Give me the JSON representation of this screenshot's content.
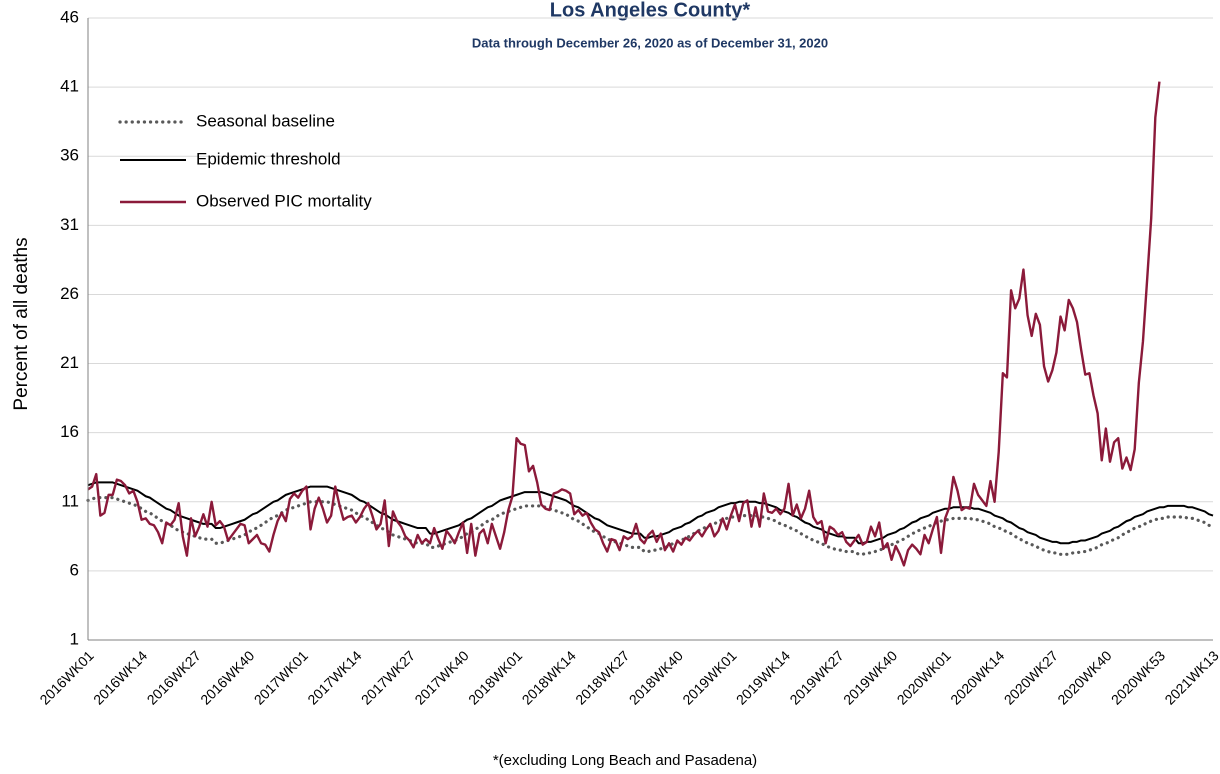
{
  "chart_data": {
    "type": "line",
    "title": "Los Angeles County*",
    "subtitle": "Data through December 26, 2020 as of December 31, 2020",
    "y_label": "Percent of all deaths",
    "footnote": "*(excluding Long Beach and Pasadena)",
    "ylim": [
      1,
      46
    ],
    "yticks": [
      1,
      6,
      11,
      16,
      21,
      26,
      31,
      36,
      41,
      46
    ],
    "grid": true,
    "legend": "upper-left",
    "categories": [
      "2016WK01",
      null,
      null,
      null,
      null,
      null,
      null,
      null,
      null,
      null,
      null,
      null,
      null,
      "2016WK14",
      null,
      null,
      null,
      null,
      null,
      null,
      null,
      null,
      null,
      null,
      null,
      null,
      "2016WK27",
      null,
      null,
      null,
      null,
      null,
      null,
      null,
      null,
      null,
      null,
      null,
      null,
      "2016WK40",
      null,
      null,
      null,
      null,
      null,
      null,
      null,
      null,
      null,
      null,
      null,
      null,
      "2017WK01",
      null,
      null,
      null,
      null,
      null,
      null,
      null,
      null,
      null,
      null,
      null,
      null,
      "2017WK14",
      null,
      null,
      null,
      null,
      null,
      null,
      null,
      null,
      null,
      null,
      null,
      null,
      "2017WK27",
      null,
      null,
      null,
      null,
      null,
      null,
      null,
      null,
      null,
      null,
      null,
      null,
      "2017WK40",
      null,
      null,
      null,
      null,
      null,
      null,
      null,
      null,
      null,
      null,
      null,
      null,
      "2018WK01",
      null,
      null,
      null,
      null,
      null,
      null,
      null,
      null,
      null,
      null,
      null,
      null,
      "2018WK14",
      null,
      null,
      null,
      null,
      null,
      null,
      null,
      null,
      null,
      null,
      null,
      null,
      "2018WK27",
      null,
      null,
      null,
      null,
      null,
      null,
      null,
      null,
      null,
      null,
      null,
      null,
      "2018WK40",
      null,
      null,
      null,
      null,
      null,
      null,
      null,
      null,
      null,
      null,
      null,
      null,
      "2019WK01",
      null,
      null,
      null,
      null,
      null,
      null,
      null,
      null,
      null,
      null,
      null,
      null,
      "2019WK14",
      null,
      null,
      null,
      null,
      null,
      null,
      null,
      null,
      null,
      null,
      null,
      null,
      "2019WK27",
      null,
      null,
      null,
      null,
      null,
      null,
      null,
      null,
      null,
      null,
      null,
      null,
      "2019WK40",
      null,
      null,
      null,
      null,
      null,
      null,
      null,
      null,
      null,
      null,
      null,
      null,
      "2020WK01",
      null,
      null,
      null,
      null,
      null,
      null,
      null,
      null,
      null,
      null,
      null,
      null,
      "2020WK14",
      null,
      null,
      null,
      null,
      null,
      null,
      null,
      null,
      null,
      null,
      null,
      null,
      "2020WK27",
      null,
      null,
      null,
      null,
      null,
      null,
      null,
      null,
      null,
      null,
      null,
      null,
      "2020WK40",
      null,
      null,
      null,
      null,
      null,
      null,
      null,
      null,
      null,
      null,
      null,
      null,
      "2020WK53",
      null,
      null,
      null,
      null,
      null,
      null,
      null,
      null,
      null,
      null,
      null,
      null,
      "2021WK13"
    ],
    "series": [
      {
        "name": "Seasonal baseline",
        "color": "#595959",
        "dash": "dotted",
        "values": [
          11.1,
          11.2,
          11.3,
          11.3,
          11.3,
          11.3,
          11.3,
          11.2,
          11.1,
          11.0,
          10.9,
          10.8,
          10.7,
          10.5,
          10.3,
          10.2,
          10.0,
          9.8,
          9.6,
          9.4,
          9.3,
          9.1,
          8.9,
          8.8,
          8.7,
          8.6,
          8.5,
          8.4,
          8.3,
          8.3,
          8.3,
          8.0,
          8.0,
          8.1,
          8.2,
          8.3,
          8.4,
          8.5,
          8.6,
          8.8,
          9.0,
          9.1,
          9.3,
          9.5,
          9.7,
          9.9,
          10.0,
          10.2,
          10.4,
          10.5,
          10.6,
          10.7,
          10.8,
          10.9,
          11.0,
          11.0,
          11.0,
          11.0,
          11.0,
          10.9,
          10.8,
          10.7,
          10.6,
          10.5,
          10.4,
          10.2,
          10.0,
          9.9,
          9.7,
          9.5,
          9.3,
          9.1,
          9.0,
          8.8,
          8.6,
          8.5,
          8.4,
          8.3,
          8.2,
          8.1,
          8.0,
          8.0,
          8.0,
          7.7,
          7.7,
          7.8,
          7.9,
          8.0,
          8.1,
          8.2,
          8.3,
          8.5,
          8.7,
          8.8,
          9.0,
          9.2,
          9.4,
          9.6,
          9.7,
          9.9,
          10.1,
          10.2,
          10.3,
          10.4,
          10.5,
          10.6,
          10.7,
          10.7,
          10.7,
          10.7,
          10.7,
          10.6,
          10.5,
          10.4,
          10.3,
          10.2,
          10.1,
          9.9,
          9.7,
          9.6,
          9.4,
          9.2,
          9.0,
          8.8,
          8.7,
          8.5,
          8.3,
          8.2,
          8.1,
          8.0,
          7.9,
          7.8,
          7.7,
          7.7,
          7.7,
          7.4,
          7.4,
          7.5,
          7.5,
          7.6,
          7.7,
          7.8,
          8.0,
          8.1,
          8.2,
          8.4,
          8.5,
          8.7,
          8.9,
          9.0,
          9.2,
          9.3,
          9.4,
          9.6,
          9.7,
          9.8,
          9.9,
          9.9,
          10.0,
          10.0,
          10.0,
          10.0,
          10.0,
          9.9,
          9.9,
          9.8,
          9.7,
          9.6,
          9.4,
          9.3,
          9.2,
          9.0,
          8.9,
          8.7,
          8.5,
          8.4,
          8.2,
          8.1,
          8.0,
          7.8,
          7.7,
          7.6,
          7.5,
          7.5,
          7.4,
          7.4,
          7.4,
          7.2,
          7.2,
          7.3,
          7.3,
          7.4,
          7.5,
          7.6,
          7.8,
          7.9,
          8.0,
          8.2,
          8.3,
          8.5,
          8.7,
          8.8,
          9.0,
          9.1,
          9.2,
          9.4,
          9.5,
          9.6,
          9.7,
          9.7,
          9.8,
          9.8,
          9.8,
          9.8,
          9.8,
          9.7,
          9.7,
          9.6,
          9.5,
          9.4,
          9.2,
          9.1,
          9.0,
          8.8,
          8.7,
          8.5,
          8.3,
          8.2,
          8.0,
          7.9,
          7.8,
          7.6,
          7.5,
          7.4,
          7.3,
          7.3,
          7.2,
          7.2,
          7.2,
          7.3,
          7.3,
          7.4,
          7.4,
          7.5,
          7.6,
          7.7,
          7.9,
          8.0,
          8.1,
          8.3,
          8.4,
          8.6,
          8.8,
          8.9,
          9.1,
          9.2,
          9.3,
          9.5,
          9.6,
          9.7,
          9.8,
          9.8,
          9.9,
          9.9,
          9.9,
          9.9,
          9.9,
          9.8,
          9.8,
          9.7,
          9.6,
          9.5,
          9.3,
          9.2
        ]
      },
      {
        "name": "Epidemic threshold",
        "color": "#000000",
        "dash": "solid",
        "values": [
          12.2,
          12.3,
          12.4,
          12.4,
          12.4,
          12.4,
          12.4,
          12.3,
          12.2,
          12.1,
          12.0,
          11.9,
          11.8,
          11.6,
          11.4,
          11.3,
          11.1,
          10.9,
          10.7,
          10.5,
          10.4,
          10.2,
          10.0,
          9.9,
          9.8,
          9.7,
          9.6,
          9.5,
          9.4,
          9.4,
          9.4,
          9.1,
          9.1,
          9.2,
          9.3,
          9.4,
          9.5,
          9.6,
          9.7,
          9.9,
          10.1,
          10.2,
          10.4,
          10.6,
          10.8,
          11.0,
          11.1,
          11.3,
          11.5,
          11.6,
          11.7,
          11.8,
          11.9,
          12.0,
          12.1,
          12.1,
          12.1,
          12.1,
          12.1,
          12.0,
          11.9,
          11.8,
          11.7,
          11.6,
          11.5,
          11.3,
          11.1,
          11.0,
          10.8,
          10.6,
          10.4,
          10.2,
          10.1,
          9.9,
          9.7,
          9.6,
          9.5,
          9.4,
          9.3,
          9.2,
          9.1,
          9.1,
          9.1,
          8.7,
          8.7,
          8.8,
          8.9,
          9.0,
          9.1,
          9.2,
          9.3,
          9.5,
          9.7,
          9.8,
          10.0,
          10.2,
          10.4,
          10.6,
          10.7,
          10.9,
          11.1,
          11.2,
          11.3,
          11.4,
          11.5,
          11.6,
          11.7,
          11.7,
          11.7,
          11.7,
          11.7,
          11.6,
          11.5,
          11.4,
          11.3,
          11.2,
          11.1,
          10.9,
          10.7,
          10.6,
          10.4,
          10.2,
          10.0,
          9.8,
          9.7,
          9.5,
          9.3,
          9.2,
          9.1,
          9.0,
          8.9,
          8.8,
          8.7,
          8.7,
          8.7,
          8.4,
          8.4,
          8.5,
          8.5,
          8.6,
          8.7,
          8.8,
          9.0,
          9.1,
          9.2,
          9.4,
          9.5,
          9.7,
          9.9,
          10.0,
          10.2,
          10.3,
          10.4,
          10.6,
          10.7,
          10.8,
          10.9,
          10.9,
          11.0,
          11.0,
          11.0,
          11.0,
          11.0,
          10.9,
          10.9,
          10.8,
          10.7,
          10.6,
          10.4,
          10.3,
          10.2,
          10.0,
          9.9,
          9.7,
          9.5,
          9.4,
          9.2,
          9.1,
          9.0,
          8.8,
          8.7,
          8.6,
          8.5,
          8.5,
          8.4,
          8.4,
          8.4,
          8.0,
          8.0,
          8.1,
          8.1,
          8.2,
          8.3,
          8.4,
          8.6,
          8.7,
          8.8,
          9.0,
          9.1,
          9.3,
          9.5,
          9.6,
          9.8,
          9.9,
          10.0,
          10.2,
          10.3,
          10.4,
          10.5,
          10.5,
          10.6,
          10.6,
          10.6,
          10.6,
          10.6,
          10.5,
          10.5,
          10.4,
          10.3,
          10.2,
          10.0,
          9.9,
          9.8,
          9.6,
          9.5,
          9.3,
          9.1,
          9.0,
          8.8,
          8.7,
          8.6,
          8.4,
          8.3,
          8.2,
          8.1,
          8.1,
          8.0,
          8.0,
          8.0,
          8.1,
          8.1,
          8.2,
          8.2,
          8.3,
          8.4,
          8.5,
          8.7,
          8.8,
          8.9,
          9.1,
          9.2,
          9.4,
          9.6,
          9.7,
          9.9,
          10.0,
          10.1,
          10.3,
          10.4,
          10.5,
          10.6,
          10.6,
          10.7,
          10.7,
          10.7,
          10.7,
          10.7,
          10.6,
          10.6,
          10.5,
          10.4,
          10.3,
          10.1,
          10.0
        ]
      },
      {
        "name": "Observed PIC mortality",
        "color": "#8b1a3a",
        "dash": "solid",
        "values": [
          11.9,
          12.1,
          13.0,
          10.0,
          10.2,
          11.5,
          11.5,
          12.6,
          12.5,
          12.2,
          11.6,
          11.8,
          11.0,
          9.7,
          9.8,
          9.4,
          9.3,
          8.8,
          8.0,
          9.5,
          9.3,
          9.7,
          10.9,
          8.5,
          7.1,
          9.8,
          8.5,
          9.2,
          10.1,
          9.2,
          11.0,
          9.3,
          9.6,
          9.2,
          8.2,
          8.6,
          9.0,
          9.4,
          9.3,
          8.0,
          8.3,
          8.6,
          8.0,
          7.9,
          7.4,
          8.6,
          9.6,
          10.2,
          9.6,
          11.2,
          11.6,
          11.3,
          11.8,
          12.1,
          9.0,
          10.5,
          11.3,
          10.5,
          9.5,
          10.0,
          12.1,
          10.8,
          9.7,
          9.9,
          10.0,
          9.5,
          9.9,
          10.5,
          10.9,
          10.0,
          9.0,
          9.4,
          11.1,
          7.8,
          10.3,
          9.6,
          9.2,
          8.5,
          8.2,
          7.7,
          8.6,
          8.0,
          8.3,
          8.0,
          9.1,
          8.3,
          7.6,
          8.9,
          8.5,
          8.0,
          8.8,
          9.5,
          7.3,
          9.4,
          7.1,
          8.7,
          9.0,
          8.0,
          9.4,
          8.5,
          7.6,
          8.8,
          10.4,
          11.4,
          15.6,
          15.2,
          15.1,
          13.2,
          13.6,
          12.4,
          10.8,
          10.5,
          10.4,
          11.6,
          11.7,
          11.9,
          11.8,
          11.6,
          10.1,
          10.4,
          10.0,
          10.2,
          9.5,
          9.0,
          8.8,
          8.0,
          7.4,
          8.3,
          8.2,
          7.5,
          8.5,
          8.3,
          8.5,
          9.4,
          8.3,
          8.0,
          8.6,
          8.9,
          8.1,
          8.7,
          7.5,
          8.0,
          7.4,
          8.2,
          7.9,
          8.4,
          8.2,
          8.6,
          8.9,
          8.5,
          9.0,
          9.4,
          8.5,
          8.9,
          9.8,
          9.0,
          10.0,
          10.8,
          9.6,
          10.9,
          11.1,
          9.2,
          10.6,
          9.2,
          11.6,
          10.3,
          10.2,
          10.5,
          10.1,
          10.5,
          12.3,
          10.0,
          10.8,
          9.8,
          10.5,
          11.8,
          9.9,
          9.4,
          9.6,
          8.0,
          9.2,
          9.0,
          8.6,
          8.8,
          8.1,
          7.8,
          8.2,
          8.6,
          7.9,
          8.1,
          9.2,
          8.5,
          9.5,
          7.6,
          8.0,
          6.8,
          7.8,
          7.2,
          6.4,
          7.5,
          7.9,
          7.6,
          7.2,
          8.6,
          8.0,
          9.0,
          9.9,
          7.3,
          9.8,
          10.6,
          12.8,
          11.8,
          10.4,
          10.6,
          10.5,
          12.3,
          11.5,
          11.1,
          10.7,
          12.5,
          11.0,
          14.6,
          20.3,
          20.0,
          26.3,
          25.0,
          25.7,
          27.8,
          24.5,
          23.0,
          24.6,
          23.8,
          20.8,
          19.7,
          20.5,
          21.8,
          24.4,
          23.4,
          25.6,
          25.0,
          24.0,
          22.0,
          20.2,
          20.3,
          18.7,
          17.4,
          14.0,
          16.3,
          13.9,
          15.3,
          15.6,
          13.4,
          14.2,
          13.3,
          14.8,
          19.6,
          22.6,
          27.0,
          31.5,
          38.8,
          41.4,
          null,
          null,
          null,
          null,
          null,
          null,
          null,
          null,
          null,
          null,
          null,
          null,
          null
        ]
      }
    ]
  }
}
